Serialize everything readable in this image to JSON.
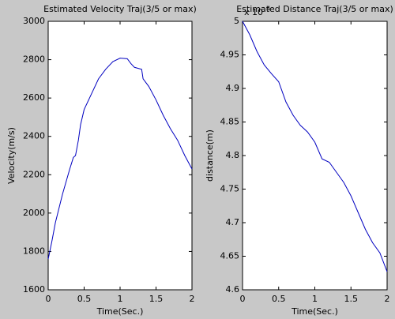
{
  "chart_data": [
    {
      "type": "line",
      "title": "Estimated Velocity Traj(3/5 or max)",
      "xlabel": "Time(Sec.)",
      "ylabel": "Velocity(m/s)",
      "x": [
        0,
        0.05,
        0.1,
        0.2,
        0.3,
        0.35,
        0.38,
        0.42,
        0.45,
        0.5,
        0.6,
        0.7,
        0.8,
        0.9,
        1.0,
        1.1,
        1.15,
        1.2,
        1.3,
        1.32,
        1.4,
        1.5,
        1.6,
        1.7,
        1.8,
        1.9,
        2.0
      ],
      "series": [
        {
          "name": "velocity",
          "color": "#0000c0",
          "values": [
            1760,
            1850,
            1950,
            2100,
            2230,
            2290,
            2300,
            2380,
            2460,
            2540,
            2620,
            2700,
            2750,
            2790,
            2808,
            2805,
            2780,
            2760,
            2750,
            2700,
            2660,
            2590,
            2510,
            2440,
            2380,
            2300,
            2230
          ]
        }
      ],
      "xlim": [
        0,
        2
      ],
      "xticks": [
        0,
        0.5,
        1,
        1.5,
        2
      ],
      "ylim": [
        1600,
        3000
      ],
      "yticks": [
        1600,
        1800,
        2000,
        2200,
        2400,
        2600,
        2800,
        3000
      ]
    },
    {
      "type": "line",
      "title": "Estimated Distance Traj(3/5 or max)",
      "xlabel": "Time(Sec.)",
      "ylabel": "distance(m)",
      "y_multiplier": "x 10",
      "y_multiplier_exponent": "4",
      "x": [
        0,
        0.1,
        0.2,
        0.3,
        0.4,
        0.5,
        0.6,
        0.7,
        0.8,
        0.9,
        1.0,
        1.1,
        1.2,
        1.3,
        1.4,
        1.5,
        1.6,
        1.7,
        1.8,
        1.9,
        2.0
      ],
      "series": [
        {
          "name": "distance",
          "color": "#0000c0",
          "values": [
            5.0,
            4.98,
            4.955,
            4.935,
            4.922,
            4.91,
            4.88,
            4.86,
            4.845,
            4.835,
            4.82,
            4.795,
            4.79,
            4.775,
            4.76,
            4.74,
            4.715,
            4.69,
            4.67,
            4.655,
            4.627
          ]
        }
      ],
      "xlim": [
        0,
        2
      ],
      "xticks": [
        0,
        0.5,
        1,
        1.5,
        2
      ],
      "ylim": [
        4.6,
        5
      ],
      "yticks": [
        4.6,
        4.65,
        4.7,
        4.75,
        4.8,
        4.85,
        4.9,
        4.95,
        5
      ]
    }
  ]
}
